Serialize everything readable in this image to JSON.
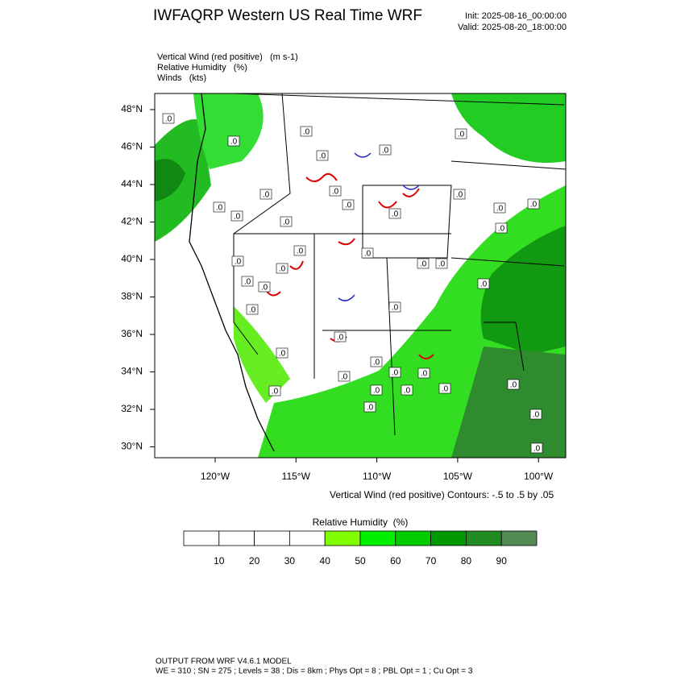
{
  "header": {
    "title": "IWFAQRP Western US Real Time WRF",
    "init": "Init: 2025-08-16_00:00:00",
    "valid": "Valid: 2025-08-20_18:00:00"
  },
  "fields": [
    "Vertical Wind (red positive)   (m s-1)",
    "Relative Humidity   (%)",
    "Winds   (kts)"
  ],
  "map": {
    "lat_labels": [
      "48°N",
      "46°N",
      "44°N",
      "42°N",
      "40°N",
      "38°N",
      "36°N",
      "34°N",
      "32°N",
      "30°N"
    ],
    "lon_labels": [
      "120°W",
      "115°W",
      "110°W",
      "105°W",
      "100°W"
    ],
    "contour_label": ".0",
    "contour_note": "Vertical Wind (red positive) Contours: -.5 to .5 by .05"
  },
  "colorbar": {
    "title": "Relative Humidity  (%)",
    "range": [
      0,
      100
    ],
    "ticks": [
      10,
      20,
      30,
      40,
      50,
      60,
      70,
      80,
      90
    ],
    "colors": [
      "#ffffff",
      "#ffffff",
      "#ffffff",
      "#ffffff",
      "#80ff00",
      "#00f000",
      "#00cc00",
      "#009900",
      "#228b22",
      "#548b54"
    ]
  },
  "footer": {
    "line1": "OUTPUT FROM WRF V4.6.1 MODEL",
    "line2": "WE = 310 ; SN = 275 ; Levels = 38 ; Dis = 8km ; Phys Opt = 8 ; PBL Opt = 1 ; Cu Opt = 3"
  }
}
